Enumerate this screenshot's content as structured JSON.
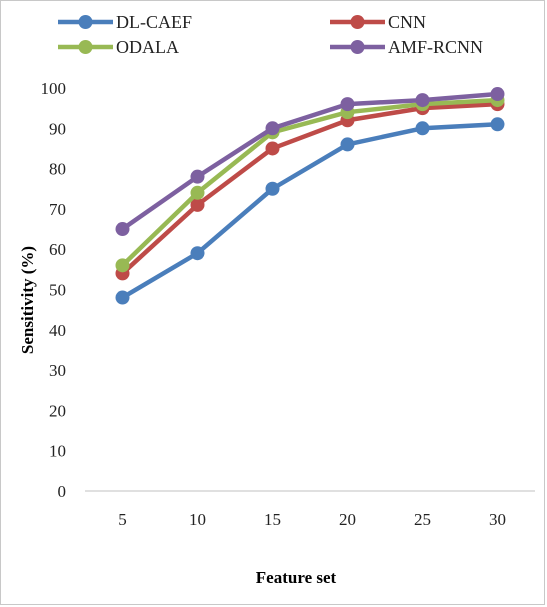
{
  "chart_data": {
    "type": "line",
    "x": [
      5,
      10,
      15,
      20,
      25,
      30
    ],
    "xlabel": "Feature set",
    "ylabel": "Sensitivity (%)",
    "ylim": [
      0,
      100
    ],
    "yticks": [
      0,
      10,
      20,
      30,
      40,
      50,
      60,
      70,
      80,
      90,
      100
    ],
    "grid": false,
    "legend_position": "top",
    "series": [
      {
        "name": "DL-CAEF",
        "color": "#4a7ebb",
        "values": [
          48,
          59,
          75,
          86,
          90,
          91
        ]
      },
      {
        "name": "CNN",
        "color": "#be4b48",
        "values": [
          54,
          71,
          85,
          92,
          95,
          96
        ]
      },
      {
        "name": "ODALA",
        "color": "#98b954",
        "values": [
          56,
          74,
          89,
          94,
          96,
          97
        ]
      },
      {
        "name": "AMF-RCNN",
        "color": "#7d60a0",
        "values": [
          65,
          78,
          90,
          96,
          97,
          98.5
        ]
      }
    ]
  }
}
